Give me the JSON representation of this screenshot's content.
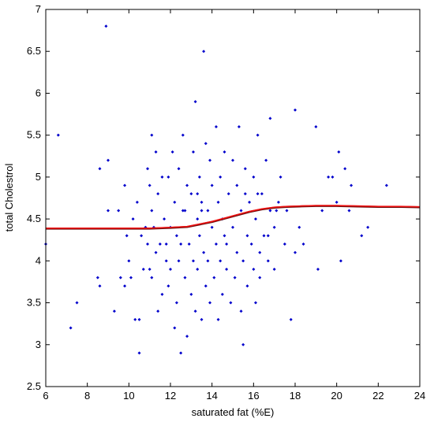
{
  "chart_data": {
    "type": "scatter",
    "title": "",
    "xlabel": "saturated fat (%E)",
    "ylabel": "total Cholestrol",
    "xlim": [
      6,
      24
    ],
    "ylim": [
      2.5,
      7
    ],
    "xticks": [
      6,
      8,
      10,
      12,
      14,
      16,
      18,
      20,
      22,
      24
    ],
    "yticks": [
      2.5,
      3,
      3.5,
      4,
      4.5,
      5,
      5.5,
      6,
      6.5,
      7
    ],
    "xtick_labels": [
      "6",
      "8",
      "10",
      "12",
      "14",
      "16",
      "18",
      "20",
      "22",
      "24"
    ],
    "ytick_labels": [
      "2.5",
      "3",
      "3.5",
      "4",
      "4.5",
      "5",
      "5.5",
      "6",
      "6.5",
      "7"
    ],
    "grid": false,
    "legend": "none",
    "colors": {
      "points": "#0000cc",
      "curve": "#ee1111",
      "curve_shadow": "#6b0f0f",
      "axes": "#000000"
    },
    "series": [
      {
        "type": "scatter",
        "points": [
          [
            6.0,
            4.2
          ],
          [
            6.6,
            5.5
          ],
          [
            7.2,
            3.2
          ],
          [
            7.5,
            3.5
          ],
          [
            8.5,
            3.8
          ],
          [
            8.6,
            3.7
          ],
          [
            8.6,
            5.1
          ],
          [
            8.9,
            6.8
          ],
          [
            9.0,
            5.2
          ],
          [
            9.0,
            4.6
          ],
          [
            9.3,
            3.4
          ],
          [
            9.5,
            4.6
          ],
          [
            9.6,
            3.8
          ],
          [
            9.8,
            4.9
          ],
          [
            9.8,
            3.7
          ],
          [
            9.9,
            4.3
          ],
          [
            10.0,
            4.0
          ],
          [
            10.1,
            3.8
          ],
          [
            10.2,
            4.5
          ],
          [
            10.3,
            3.3
          ],
          [
            10.4,
            4.7
          ],
          [
            10.5,
            2.9
          ],
          [
            10.5,
            3.3
          ],
          [
            10.6,
            4.3
          ],
          [
            10.7,
            3.9
          ],
          [
            10.9,
            5.1
          ],
          [
            10.9,
            4.2
          ],
          [
            11.0,
            4.9
          ],
          [
            11.0,
            3.9
          ],
          [
            11.1,
            5.5
          ],
          [
            11.1,
            4.6
          ],
          [
            11.1,
            3.8
          ],
          [
            11.2,
            4.4
          ],
          [
            11.3,
            5.3
          ],
          [
            11.3,
            4.1
          ],
          [
            11.4,
            4.8
          ],
          [
            11.4,
            3.4
          ],
          [
            11.5,
            4.2
          ],
          [
            11.6,
            5.0
          ],
          [
            11.6,
            3.6
          ],
          [
            11.7,
            4.5
          ],
          [
            11.8,
            4.0
          ],
          [
            11.9,
            5.0
          ],
          [
            11.9,
            3.7
          ],
          [
            12.0,
            4.4
          ],
          [
            12.0,
            3.9
          ],
          [
            12.1,
            5.3
          ],
          [
            12.2,
            4.7
          ],
          [
            12.2,
            3.2
          ],
          [
            12.3,
            4.3
          ],
          [
            12.3,
            3.5
          ],
          [
            12.4,
            5.1
          ],
          [
            12.4,
            4.0
          ],
          [
            12.5,
            2.9
          ],
          [
            12.5,
            4.2
          ],
          [
            12.6,
            5.5
          ],
          [
            12.7,
            4.6
          ],
          [
            12.7,
            3.8
          ],
          [
            12.8,
            3.1
          ],
          [
            12.8,
            4.9
          ],
          [
            12.9,
            4.2
          ],
          [
            13.0,
            3.6
          ],
          [
            13.0,
            4.8
          ],
          [
            13.1,
            5.3
          ],
          [
            13.1,
            4.0
          ],
          [
            13.2,
            3.4
          ],
          [
            13.2,
            5.9
          ],
          [
            13.3,
            4.5
          ],
          [
            13.3,
            3.9
          ],
          [
            13.4,
            5.0
          ],
          [
            13.4,
            4.3
          ],
          [
            13.5,
            3.3
          ],
          [
            13.5,
            4.7
          ],
          [
            13.6,
            6.5
          ],
          [
            13.6,
            4.1
          ],
          [
            13.7,
            5.4
          ],
          [
            13.7,
            3.7
          ],
          [
            13.8,
            4.6
          ],
          [
            13.8,
            4.0
          ],
          [
            13.9,
            5.2
          ],
          [
            13.9,
            3.5
          ],
          [
            14.0,
            4.4
          ],
          [
            14.0,
            4.9
          ],
          [
            14.1,
            3.8
          ],
          [
            14.2,
            5.6
          ],
          [
            14.2,
            4.2
          ],
          [
            14.3,
            4.7
          ],
          [
            14.3,
            3.3
          ],
          [
            14.4,
            5.0
          ],
          [
            14.4,
            4.0
          ],
          [
            14.5,
            4.5
          ],
          [
            14.5,
            3.6
          ],
          [
            14.6,
            5.3
          ],
          [
            14.7,
            4.2
          ],
          [
            14.7,
            3.9
          ],
          [
            14.8,
            4.8
          ],
          [
            14.9,
            3.5
          ],
          [
            15.0,
            5.2
          ],
          [
            15.0,
            4.4
          ],
          [
            15.1,
            3.8
          ],
          [
            15.2,
            4.9
          ],
          [
            15.2,
            4.1
          ],
          [
            15.3,
            5.6
          ],
          [
            15.4,
            3.4
          ],
          [
            15.4,
            4.6
          ],
          [
            15.5,
            3.0
          ],
          [
            15.5,
            4.0
          ],
          [
            15.6,
            5.1
          ],
          [
            15.7,
            4.3
          ],
          [
            15.7,
            3.7
          ],
          [
            15.8,
            4.7
          ],
          [
            15.9,
            4.2
          ],
          [
            16.0,
            3.9
          ],
          [
            16.0,
            5.0
          ],
          [
            16.1,
            3.5
          ],
          [
            16.1,
            4.5
          ],
          [
            16.2,
            5.5
          ],
          [
            16.3,
            4.1
          ],
          [
            16.3,
            3.8
          ],
          [
            16.4,
            4.8
          ],
          [
            16.5,
            4.3
          ],
          [
            16.6,
            5.2
          ],
          [
            16.7,
            4.0
          ],
          [
            16.8,
            5.7
          ],
          [
            16.8,
            4.6
          ],
          [
            17.0,
            4.4
          ],
          [
            17.0,
            3.9
          ],
          [
            17.2,
            4.7
          ],
          [
            17.3,
            5.0
          ],
          [
            17.5,
            4.2
          ],
          [
            17.6,
            4.6
          ],
          [
            17.8,
            3.3
          ],
          [
            18.0,
            5.8
          ],
          [
            18.0,
            4.1
          ],
          [
            18.2,
            4.4
          ],
          [
            18.4,
            4.2
          ],
          [
            19.0,
            5.6
          ],
          [
            19.1,
            3.9
          ],
          [
            19.3,
            4.6
          ],
          [
            19.6,
            5.0
          ],
          [
            19.8,
            5.0
          ],
          [
            20.0,
            4.7
          ],
          [
            20.1,
            5.3
          ],
          [
            20.2,
            4.0
          ],
          [
            20.4,
            5.1
          ],
          [
            20.6,
            4.6
          ],
          [
            20.7,
            4.9
          ],
          [
            21.2,
            4.3
          ],
          [
            21.5,
            4.4
          ],
          [
            22.4,
            4.9
          ],
          [
            16.7,
            4.3
          ],
          [
            17.1,
            4.6
          ],
          [
            16.2,
            4.8
          ],
          [
            12.6,
            4.6
          ],
          [
            13.3,
            4.8
          ],
          [
            14.6,
            4.3
          ],
          [
            15.6,
            4.8
          ],
          [
            11.8,
            4.2
          ],
          [
            10.8,
            4.4
          ],
          [
            13.5,
            4.6
          ]
        ]
      },
      {
        "type": "line",
        "points": [
          [
            6.0,
            4.39
          ],
          [
            9.0,
            4.39
          ],
          [
            10.0,
            4.39
          ],
          [
            11.0,
            4.39
          ],
          [
            12.0,
            4.4
          ],
          [
            12.8,
            4.41
          ],
          [
            13.4,
            4.44
          ],
          [
            14.0,
            4.47
          ],
          [
            14.6,
            4.51
          ],
          [
            15.2,
            4.55
          ],
          [
            15.8,
            4.59
          ],
          [
            16.4,
            4.62
          ],
          [
            17.0,
            4.64
          ],
          [
            17.6,
            4.65
          ],
          [
            18.2,
            4.655
          ],
          [
            19.0,
            4.66
          ],
          [
            20.0,
            4.66
          ],
          [
            21.0,
            4.655
          ],
          [
            22.0,
            4.65
          ],
          [
            23.0,
            4.65
          ],
          [
            24.0,
            4.645
          ]
        ]
      }
    ]
  }
}
